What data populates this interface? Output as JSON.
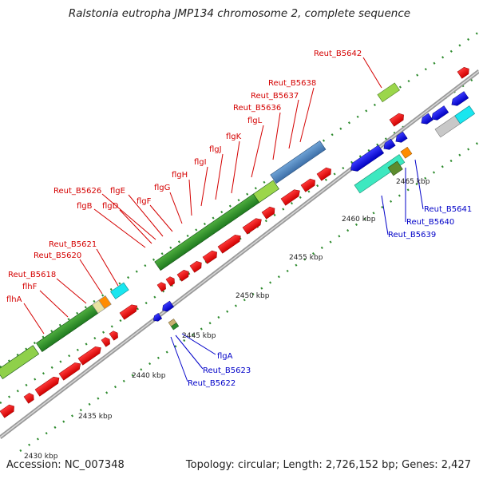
{
  "title": "Ralstonia eutropha JMP134 chromosome 2, complete sequence",
  "accession": "Accession: NC_007348",
  "summary": "Topology: circular; Length: 2,726,152 bp; Genes: 2,427",
  "colors": {
    "backbone": "#8c8c8c",
    "forward_label": "#d40000",
    "reverse_label": "#0000c8",
    "red_gene": "#ee1c1c",
    "green_gene": "#2e8b2e",
    "tick": "#2e8b2e"
  },
  "kbp_labels": [
    "2435 kbp",
    "2440 kbp",
    "2445 kbp",
    "2450 kbp",
    "2455 kbp",
    "2460 kbp",
    "2465 kbp",
    "2430 kbp"
  ],
  "forward_genes": [
    "Reut_B5642",
    "Reut_B5638",
    "Reut_B5637",
    "Reut_B5636",
    "flgL",
    "flgK",
    "flgJ",
    "flgI",
    "flgH",
    "flgG",
    "Reut_B5626",
    "flgE",
    "flgF",
    "flgB",
    "flgD",
    "Reut_B5621",
    "Reut_B5620",
    "Reut_B5618",
    "flhF",
    "flhA"
  ],
  "reverse_genes": [
    "Reut_B5641",
    "Reut_B5640",
    "Reut_B5639",
    "flgA",
    "Reut_B5623",
    "Reut_B5622"
  ]
}
